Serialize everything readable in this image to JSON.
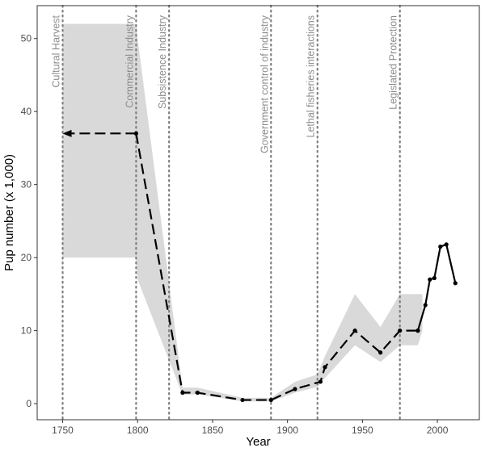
{
  "chart_data": {
    "type": "line",
    "xlabel": "Year",
    "ylabel": "Pup number (x 1,000)",
    "xlim": [
      1733,
      2028
    ],
    "ylim": [
      -2.2,
      54.5
    ],
    "x_ticks": [
      1750,
      1800,
      1850,
      1900,
      1950,
      2000
    ],
    "y_ticks": [
      0,
      10,
      20,
      30,
      40,
      50
    ],
    "grid": false,
    "legend": "none",
    "events": [
      {
        "year": 1750,
        "label": "Cultural Harvest"
      },
      {
        "year": 1799,
        "label": "Commercial Industry"
      },
      {
        "year": 1821,
        "label": "Subsistence Industry"
      },
      {
        "year": 1889,
        "label": "Government control of industry"
      },
      {
        "year": 1920,
        "label": "Lethal fisheries interactions"
      },
      {
        "year": 1975,
        "label": "Legislated Protection"
      }
    ],
    "uncertainty_band": {
      "x": [
        1750,
        1799,
        1800,
        1830,
        1840,
        1870,
        1889,
        1905,
        1920,
        1925,
        1945,
        1962,
        1975,
        1987,
        1990
      ],
      "lower": [
        20,
        20,
        17,
        1.2,
        1.3,
        0.3,
        0.3,
        1.5,
        2.3,
        3.5,
        8.0,
        5.7,
        8.0,
        8.0,
        10.0
      ],
      "upper": [
        52,
        52,
        50,
        2.2,
        2.2,
        0.8,
        0.8,
        3.0,
        4.0,
        6.5,
        15.0,
        10.5,
        15.0,
        15.0,
        15.0
      ]
    },
    "series": [
      {
        "style": "dashed",
        "x": [
          1799,
          1830,
          1840,
          1870,
          1889,
          1905,
          1922,
          1925,
          1945,
          1962,
          1975,
          1987
        ],
        "y": [
          37,
          1.5,
          1.5,
          0.5,
          0.5,
          2.0,
          3.0,
          5.0,
          10.0,
          7.0,
          10.0,
          10.0
        ]
      },
      {
        "style": "solid",
        "x": [
          1987,
          1992,
          1995,
          1998,
          2002,
          2006,
          2012
        ],
        "y": [
          10.0,
          13.5,
          17.0,
          17.2,
          21.5,
          21.8,
          16.5
        ]
      }
    ],
    "arrow": {
      "from": [
        1799,
        37
      ],
      "to": [
        1750,
        37
      ]
    },
    "colors": {
      "band": "#d9d9d9",
      "line": "#000000",
      "event_line": "#7f7f7f",
      "event_label": "#8c8c8c"
    }
  }
}
